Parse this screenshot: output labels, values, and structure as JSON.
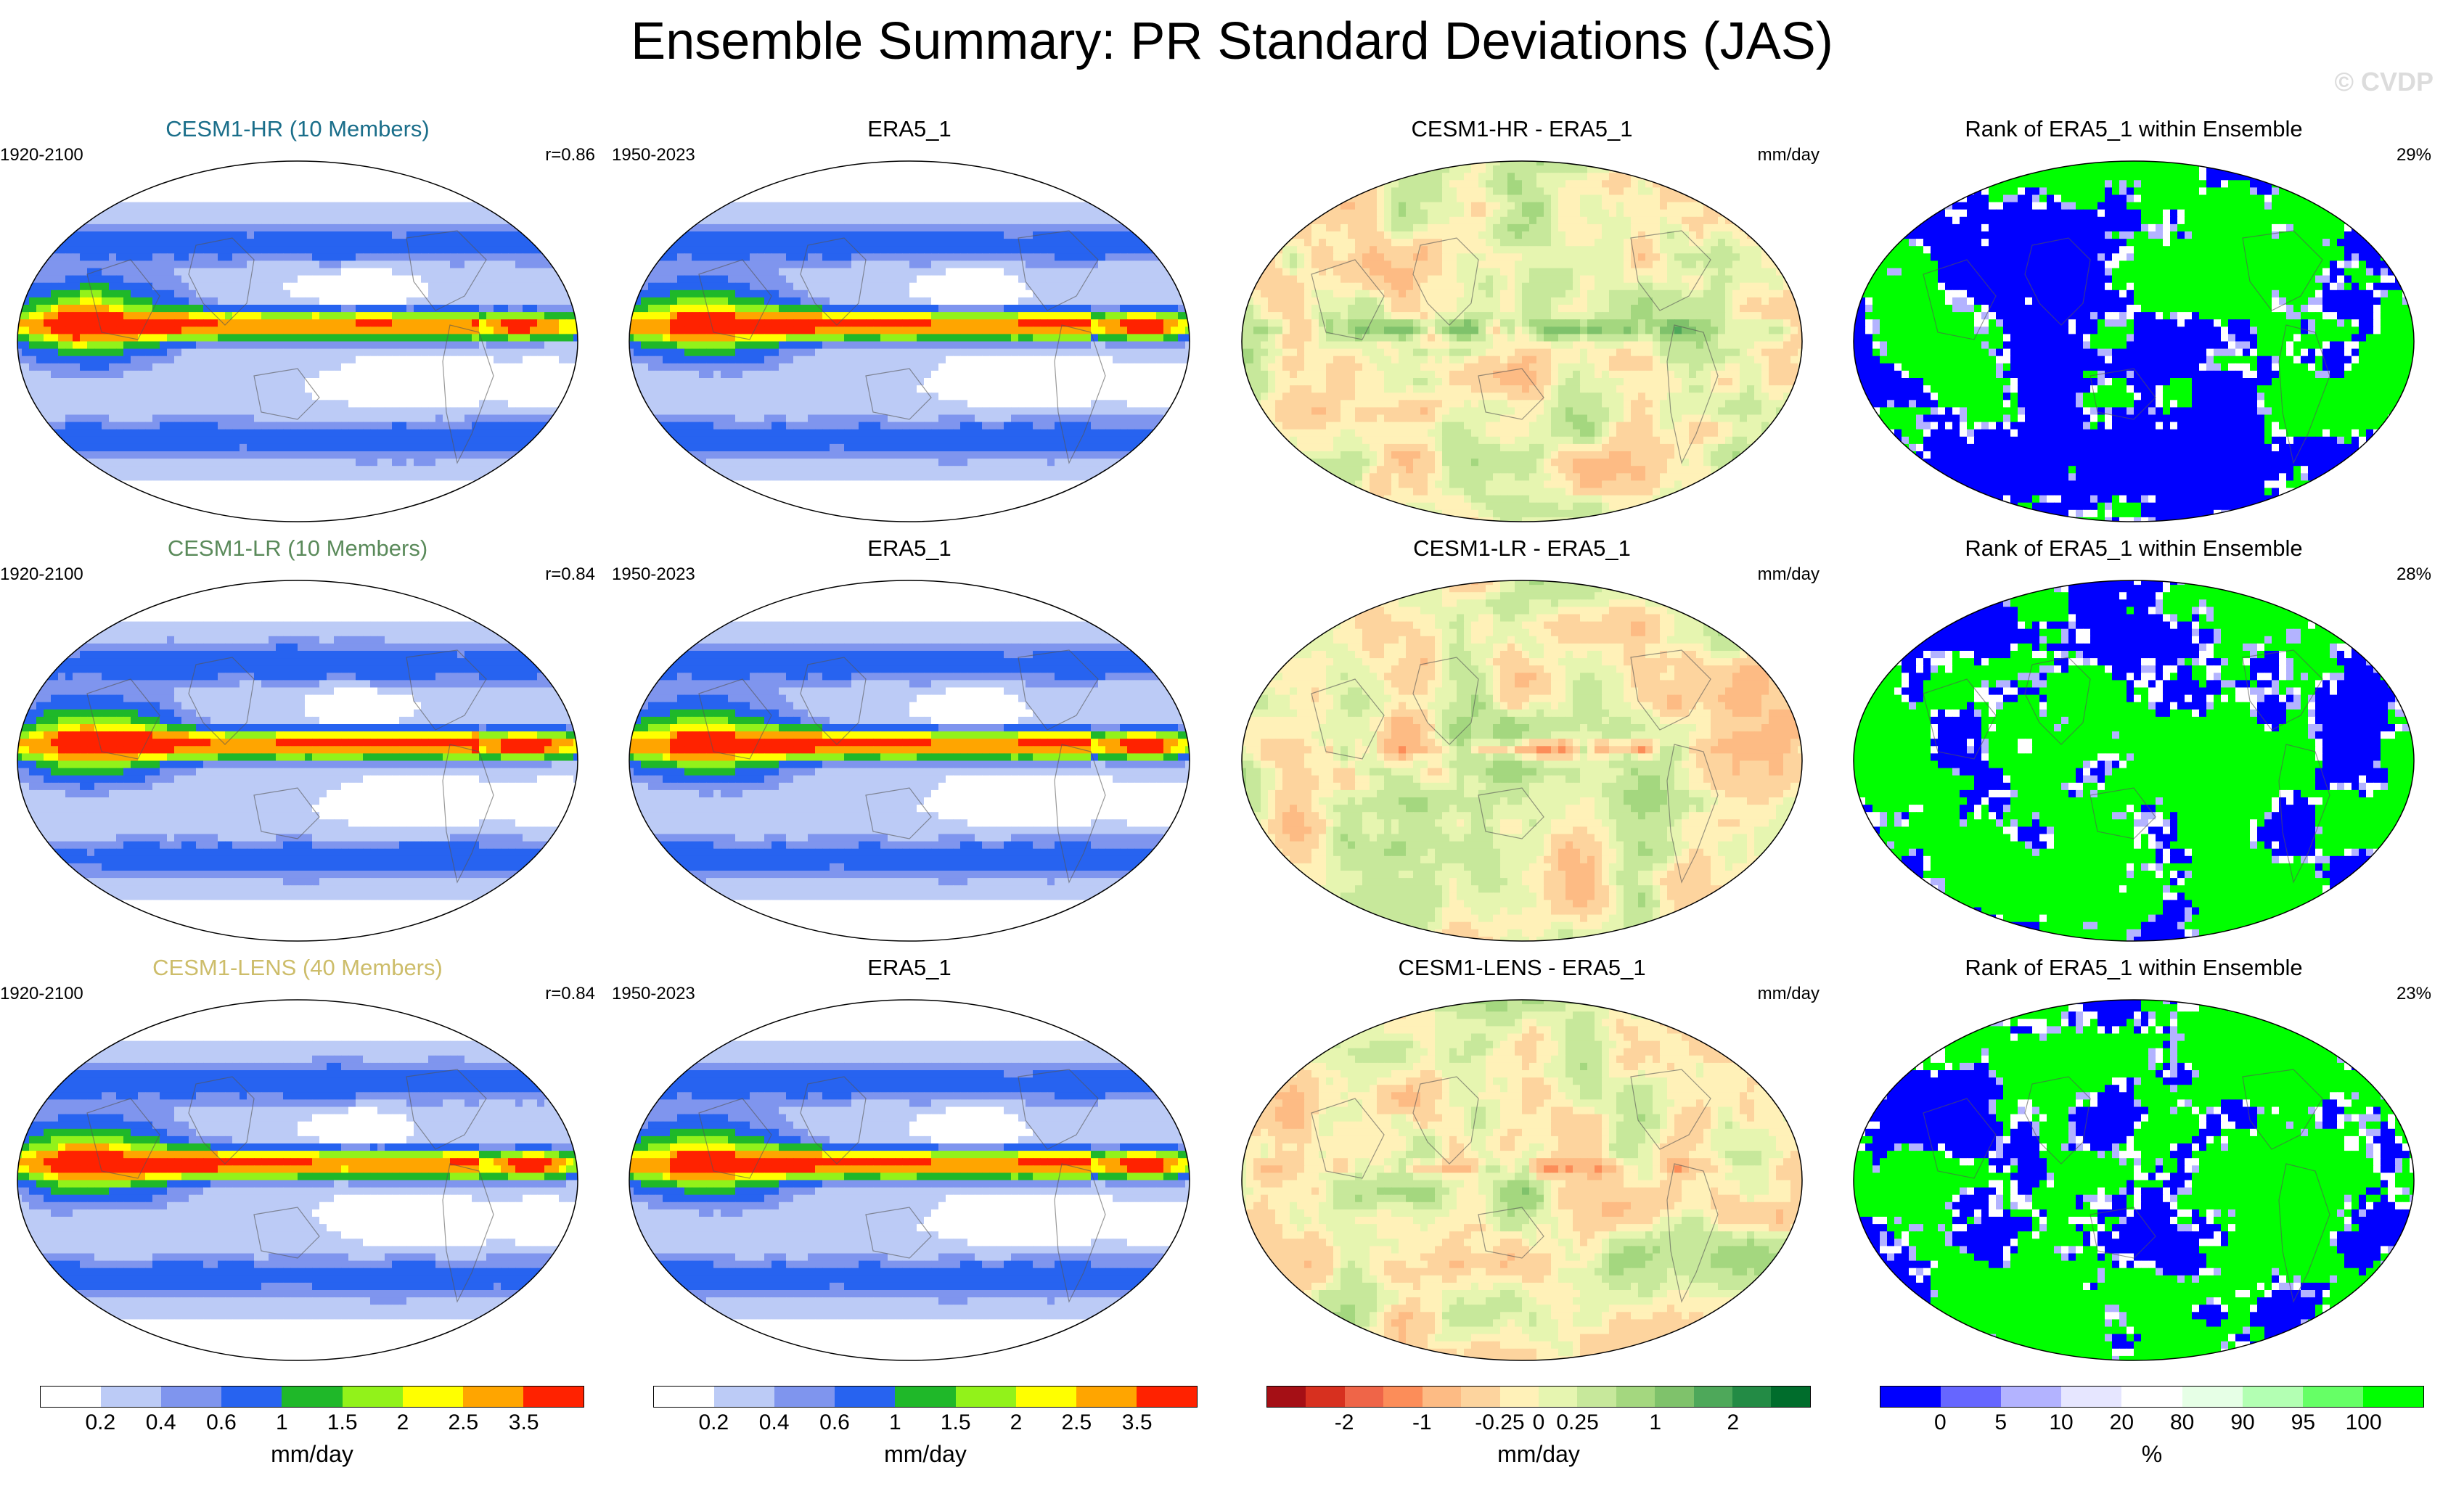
{
  "title": "Ensemble Summary: PR Standard Deviations (JAS)",
  "watermark": "© CVDP",
  "colors": {
    "pr_scale": [
      "#ffffff",
      "#bccbf6",
      "#7f95ee",
      "#2763f0",
      "#1fb829",
      "#92f21a",
      "#ffff00",
      "#ffa500",
      "#ff2200"
    ],
    "diff_scale": [
      "#a50f15",
      "#d7301f",
      "#ef6548",
      "#fc8d59",
      "#fdbb84",
      "#fdd49e",
      "#fff1b8",
      "#e6f5b0",
      "#c7e89b",
      "#a4d77f",
      "#7fc26b",
      "#4ea85a",
      "#238b45",
      "#006d2c"
    ],
    "rank_scale": [
      "#0000ff",
      "#6666ff",
      "#b3b3ff",
      "#e6e6ff",
      "#ffffff",
      "#e6ffe6",
      "#b3ffb3",
      "#66ff66",
      "#00ff00"
    ]
  },
  "chart_data": [
    {
      "type": "heatmap",
      "row": 0,
      "col": 0,
      "title": "CESM1-HR (10 Members)",
      "title_color": "#1a6e8a",
      "period": "1920-2100",
      "corner": "r=0.86",
      "pattern": "pr",
      "variant": 0
    },
    {
      "type": "heatmap",
      "row": 0,
      "col": 1,
      "title": "ERA5_1",
      "period": "1950-2023",
      "corner": "",
      "pattern": "pr",
      "variant": 1
    },
    {
      "type": "heatmap",
      "row": 0,
      "col": 2,
      "title": "CESM1-HR - ERA5_1",
      "period": "",
      "corner": "mm/day",
      "pattern": "diff",
      "variant": 0
    },
    {
      "type": "heatmap",
      "row": 0,
      "col": 3,
      "title": "Rank of ERA5_1 within Ensemble",
      "period": "",
      "corner": "29%",
      "pattern": "rank",
      "variant": 0
    },
    {
      "type": "heatmap",
      "row": 1,
      "col": 0,
      "title": "CESM1-LR (10 Members)",
      "title_color": "#5a8a5a",
      "period": "1920-2100",
      "corner": "r=0.84",
      "pattern": "pr",
      "variant": 2
    },
    {
      "type": "heatmap",
      "row": 1,
      "col": 1,
      "title": "ERA5_1",
      "period": "1950-2023",
      "corner": "",
      "pattern": "pr",
      "variant": 1
    },
    {
      "type": "heatmap",
      "row": 1,
      "col": 2,
      "title": "CESM1-LR - ERA5_1",
      "period": "",
      "corner": "mm/day",
      "pattern": "diff",
      "variant": 1
    },
    {
      "type": "heatmap",
      "row": 1,
      "col": 3,
      "title": "Rank of ERA5_1 within Ensemble",
      "period": "",
      "corner": "28%",
      "pattern": "rank",
      "variant": 1
    },
    {
      "type": "heatmap",
      "row": 2,
      "col": 0,
      "title": "CESM1-LENS (40 Members)",
      "title_color": "#cdbd6a",
      "period": "1920-2100",
      "corner": "r=0.84",
      "pattern": "pr",
      "variant": 3
    },
    {
      "type": "heatmap",
      "row": 2,
      "col": 1,
      "title": "ERA5_1",
      "period": "1950-2023",
      "corner": "",
      "pattern": "pr",
      "variant": 1
    },
    {
      "type": "heatmap",
      "row": 2,
      "col": 2,
      "title": "CESM1-LENS - ERA5_1",
      "period": "",
      "corner": "mm/day",
      "pattern": "diff",
      "variant": 2
    },
    {
      "type": "heatmap",
      "row": 2,
      "col": 3,
      "title": "Rank of ERA5_1 within Ensemble",
      "period": "",
      "corner": "23%",
      "pattern": "rank",
      "variant": 2
    }
  ],
  "colorbars": [
    {
      "scale": "pr_scale",
      "ticks": [
        "0.2",
        "0.4",
        "0.6",
        "1",
        "1.5",
        "2",
        "2.5",
        "3.5"
      ],
      "unit": "mm/day"
    },
    {
      "scale": "pr_scale",
      "ticks": [
        "0.2",
        "0.4",
        "0.6",
        "1",
        "1.5",
        "2",
        "2.5",
        "3.5"
      ],
      "unit": "mm/day"
    },
    {
      "scale": "diff_scale",
      "ticks": [
        "-2",
        "-1",
        "-0.25",
        "0",
        "0.25",
        "1",
        "2"
      ],
      "unit": "mm/day"
    },
    {
      "scale": "rank_scale",
      "ticks": [
        "0",
        "5",
        "10",
        "20",
        "80",
        "90",
        "95",
        "100"
      ],
      "unit": "%"
    }
  ]
}
